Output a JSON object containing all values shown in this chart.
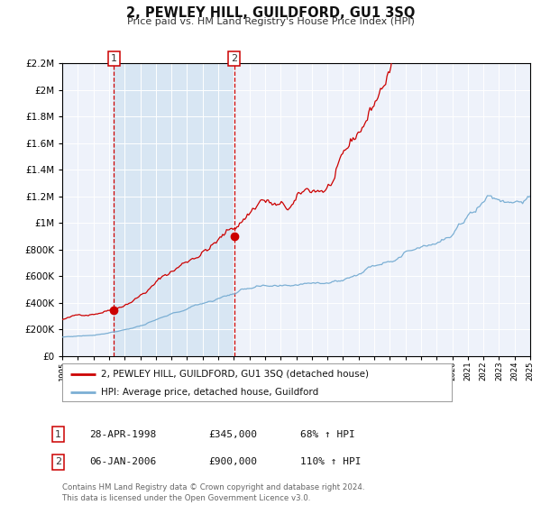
{
  "title": "2, PEWLEY HILL, GUILDFORD, GU1 3SQ",
  "subtitle": "Price paid vs. HM Land Registry's House Price Index (HPI)",
  "legend_line1": "2, PEWLEY HILL, GUILDFORD, GU1 3SQ (detached house)",
  "legend_line2": "HPI: Average price, detached house, Guildford",
  "annotation1_label": "1",
  "annotation1_date": "28-APR-1998",
  "annotation1_price": "£345,000",
  "annotation1_hpi": "68% ↑ HPI",
  "annotation2_label": "2",
  "annotation2_date": "06-JAN-2006",
  "annotation2_price": "£900,000",
  "annotation2_hpi": "110% ↑ HPI",
  "footer": "Contains HM Land Registry data © Crown copyright and database right 2024.\nThis data is licensed under the Open Government Licence v3.0.",
  "red_color": "#cc0000",
  "blue_color": "#7bafd4",
  "bg_color": "#ffffff",
  "plot_bg_color": "#eef2fa",
  "grid_color": "#ffffff",
  "shade_color": "#d8e6f3",
  "ylim": [
    0,
    2200000
  ],
  "yticks": [
    0,
    200000,
    400000,
    600000,
    800000,
    1000000,
    1200000,
    1400000,
    1600000,
    1800000,
    2000000,
    2200000
  ],
  "year_start": 1995,
  "year_end": 2025,
  "sale1_year": 1998.32,
  "sale1_value": 345000,
  "sale2_year": 2006.02,
  "sale2_value": 900000,
  "vline1_year": 1998.32,
  "vline2_year": 2006.02
}
